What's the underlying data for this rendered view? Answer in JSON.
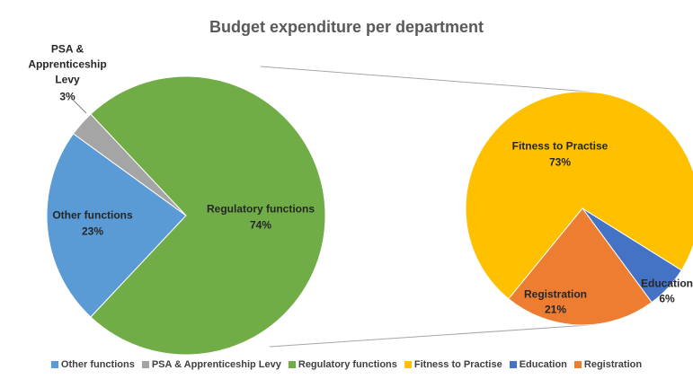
{
  "chart_data": {
    "type": "pie",
    "title": "Budget expenditure per department",
    "categories": [
      "Other functions",
      "PSA & Apprenticeship Levy",
      "Regulatory functions"
    ],
    "values": [
      23,
      3,
      74
    ],
    "value_labels": [
      "23%",
      "3%",
      "74%"
    ],
    "colors": [
      "#5b9bd5",
      "#a5a5a5",
      "#70ad47"
    ],
    "secondary": {
      "categories": [
        "Fitness to Practise",
        "Education",
        "Registration"
      ],
      "values": [
        73,
        6,
        21
      ],
      "value_labels": [
        "73%",
        "6%",
        "21%"
      ],
      "colors": [
        "#ffc000",
        "#4472c4",
        "#ed7d31"
      ]
    },
    "legend": "bottom"
  }
}
